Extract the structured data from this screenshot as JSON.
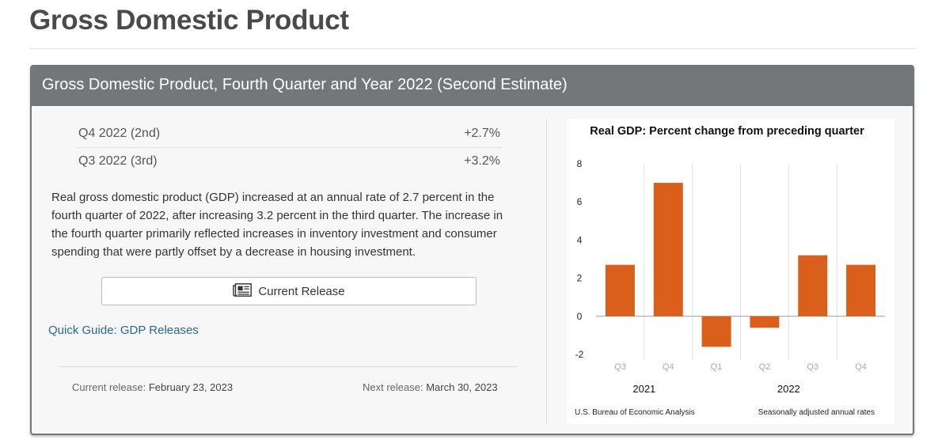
{
  "page": {
    "title": "Gross Domestic Product"
  },
  "panel": {
    "title": "Gross Domestic Product, Fourth Quarter and Year 2022 (Second Estimate)",
    "estimates": [
      {
        "label": "Q4 2022 (2nd)",
        "value": "+2.7%"
      },
      {
        "label": "Q3 2022 (3rd)",
        "value": "+3.2%"
      }
    ],
    "summary": "Real gross domestic product (GDP) increased at an annual rate of 2.7 percent in the fourth quarter of 2022, after increasing 3.2 percent in the third quarter. The increase in the fourth quarter primarily reflected increases in inventory investment and consumer spending that were partly offset by a decrease in housing investment.",
    "release_button": {
      "label": "Current Release",
      "icon": "newspaper-icon"
    },
    "quick_guide_link": "Quick Guide: GDP Releases",
    "current_release": {
      "label": "Current release:",
      "value": "February 23, 2023"
    },
    "next_release": {
      "label": "Next release:",
      "value": "March 30, 2023"
    }
  },
  "chart_data": {
    "type": "bar",
    "title": "Real GDP:  Percent change from preceding quarter",
    "categories": [
      "Q3",
      "Q4",
      "Q1",
      "Q2",
      "Q3",
      "Q4"
    ],
    "year_groups": [
      {
        "label": "2021",
        "categories": 2
      },
      {
        "label": "2022",
        "categories": 4
      }
    ],
    "values": [
      2.7,
      7.0,
      -1.6,
      -0.6,
      3.2,
      2.7
    ],
    "ylim": [
      -2,
      8
    ],
    "yticks": [
      -2,
      0,
      2,
      4,
      6,
      8
    ],
    "bar_color": "#d95f1a",
    "source_note": "U.S. Bureau of Economic Analysis",
    "rate_note": "Seasonally adjusted annual rates",
    "grid": "vertical separators only"
  }
}
